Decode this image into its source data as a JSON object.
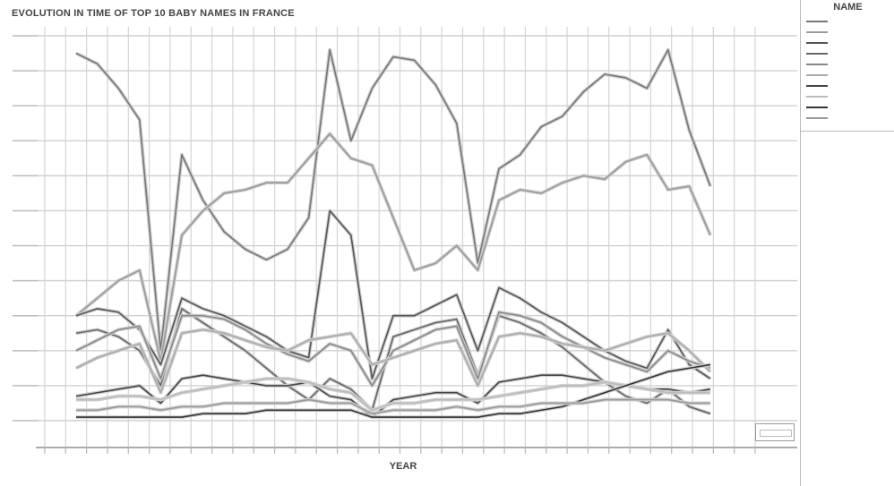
{
  "chart_data": {
    "type": "line",
    "title": "EVOLUTION IN TIME OF TOP 10 BABY NAMES IN FRANCE",
    "xlabel": "YEAR",
    "ylabel": "",
    "legend_title": "NAME",
    "legend_position": "right",
    "grid": true,
    "xlim": [
      0,
      30
    ],
    "ylim": [
      0,
      11
    ],
    "x": [
      0,
      1,
      2,
      3,
      4,
      5,
      6,
      7,
      8,
      9,
      10,
      11,
      12,
      13,
      14,
      15,
      16,
      17,
      18,
      19,
      20,
      21,
      22,
      23,
      24,
      25,
      26,
      27,
      28,
      29,
      30
    ],
    "series": [
      {
        "color": "#777777",
        "values": [
          10.5,
          10.2,
          9.5,
          8.6,
          2.0,
          7.6,
          6.3,
          5.4,
          4.9,
          4.6,
          4.9,
          5.8,
          10.6,
          8.0,
          9.5,
          10.4,
          10.3,
          9.6,
          8.5,
          4.5,
          7.2,
          7.6,
          8.4,
          8.7,
          9.4,
          9.9,
          9.8,
          9.5,
          10.6,
          8.3,
          6.7
        ]
      },
      {
        "color": "#999999",
        "values": [
          3.0,
          3.5,
          4.0,
          4.3,
          1.7,
          5.3,
          6.0,
          6.5,
          6.6,
          6.8,
          6.8,
          7.5,
          8.2,
          7.5,
          7.3,
          5.8,
          4.3,
          4.5,
          5.0,
          4.3,
          6.3,
          6.6,
          6.5,
          6.8,
          7.0,
          6.9,
          7.4,
          7.6,
          6.6,
          6.7,
          5.3
        ]
      },
      {
        "color": "#555555",
        "values": [
          3.0,
          3.2,
          3.1,
          2.6,
          1.6,
          3.5,
          3.2,
          3.0,
          2.7,
          2.4,
          2.0,
          1.8,
          6.0,
          5.3,
          1.2,
          3.0,
          3.0,
          3.3,
          3.6,
          2.0,
          3.8,
          3.5,
          3.1,
          2.8,
          2.4,
          2.0,
          1.7,
          1.5,
          2.6,
          1.6,
          1.2
        ]
      },
      {
        "color": "#666666",
        "values": [
          2.5,
          2.6,
          2.4,
          2.0,
          1.0,
          3.2,
          2.8,
          2.4,
          2.0,
          1.5,
          1.0,
          0.6,
          1.2,
          0.9,
          0.3,
          2.4,
          2.6,
          2.8,
          2.9,
          1.3,
          3.0,
          2.8,
          2.5,
          2.1,
          1.6,
          1.1,
          0.7,
          0.5,
          0.9,
          0.4,
          0.2
        ]
      },
      {
        "color": "#888888",
        "values": [
          2.0,
          2.3,
          2.6,
          2.7,
          1.2,
          3.0,
          3.0,
          2.9,
          2.6,
          2.2,
          1.9,
          1.7,
          2.2,
          2.0,
          1.0,
          2.0,
          2.3,
          2.6,
          2.7,
          1.2,
          3.1,
          3.0,
          2.8,
          2.4,
          2.1,
          1.8,
          1.6,
          1.4,
          2.0,
          1.7,
          1.5
        ]
      },
      {
        "color": "#aaaaaa",
        "values": [
          1.5,
          1.8,
          2.0,
          2.2,
          0.8,
          2.5,
          2.6,
          2.5,
          2.3,
          2.1,
          2.0,
          2.3,
          2.4,
          2.5,
          1.6,
          1.8,
          2.0,
          2.2,
          2.3,
          1.0,
          2.4,
          2.5,
          2.4,
          2.2,
          2.1,
          2.0,
          2.2,
          2.4,
          2.5,
          2.0,
          1.4
        ]
      },
      {
        "color": "#444444",
        "values": [
          0.7,
          0.8,
          0.9,
          1.0,
          0.5,
          1.2,
          1.3,
          1.2,
          1.1,
          1.0,
          1.0,
          1.1,
          0.7,
          0.6,
          0.1,
          0.6,
          0.7,
          0.8,
          0.8,
          0.5,
          1.1,
          1.2,
          1.3,
          1.3,
          1.2,
          1.1,
          1.0,
          0.9,
          0.9,
          0.8,
          0.9
        ]
      },
      {
        "color": "#bbbbbb",
        "values": [
          0.6,
          0.6,
          0.7,
          0.7,
          0.6,
          0.8,
          0.9,
          1.0,
          1.1,
          1.2,
          1.2,
          1.1,
          0.9,
          0.8,
          0.3,
          0.5,
          0.5,
          0.6,
          0.6,
          0.6,
          0.7,
          0.8,
          0.9,
          1.0,
          1.0,
          1.1,
          1.0,
          0.9,
          0.8,
          0.8,
          0.8
        ]
      },
      {
        "color": "#333333",
        "values": [
          0.1,
          0.1,
          0.1,
          0.1,
          0.1,
          0.1,
          0.2,
          0.2,
          0.2,
          0.3,
          0.3,
          0.3,
          0.3,
          0.3,
          0.1,
          0.1,
          0.1,
          0.1,
          0.1,
          0.1,
          0.2,
          0.2,
          0.3,
          0.4,
          0.6,
          0.8,
          1.0,
          1.2,
          1.4,
          1.5,
          1.6
        ]
      },
      {
        "color": "#999999",
        "values": [
          0.3,
          0.3,
          0.4,
          0.4,
          0.3,
          0.4,
          0.4,
          0.5,
          0.5,
          0.5,
          0.5,
          0.6,
          0.5,
          0.5,
          0.2,
          0.3,
          0.3,
          0.3,
          0.4,
          0.3,
          0.4,
          0.4,
          0.5,
          0.5,
          0.5,
          0.6,
          0.6,
          0.6,
          0.6,
          0.5,
          0.5
        ]
      }
    ]
  }
}
